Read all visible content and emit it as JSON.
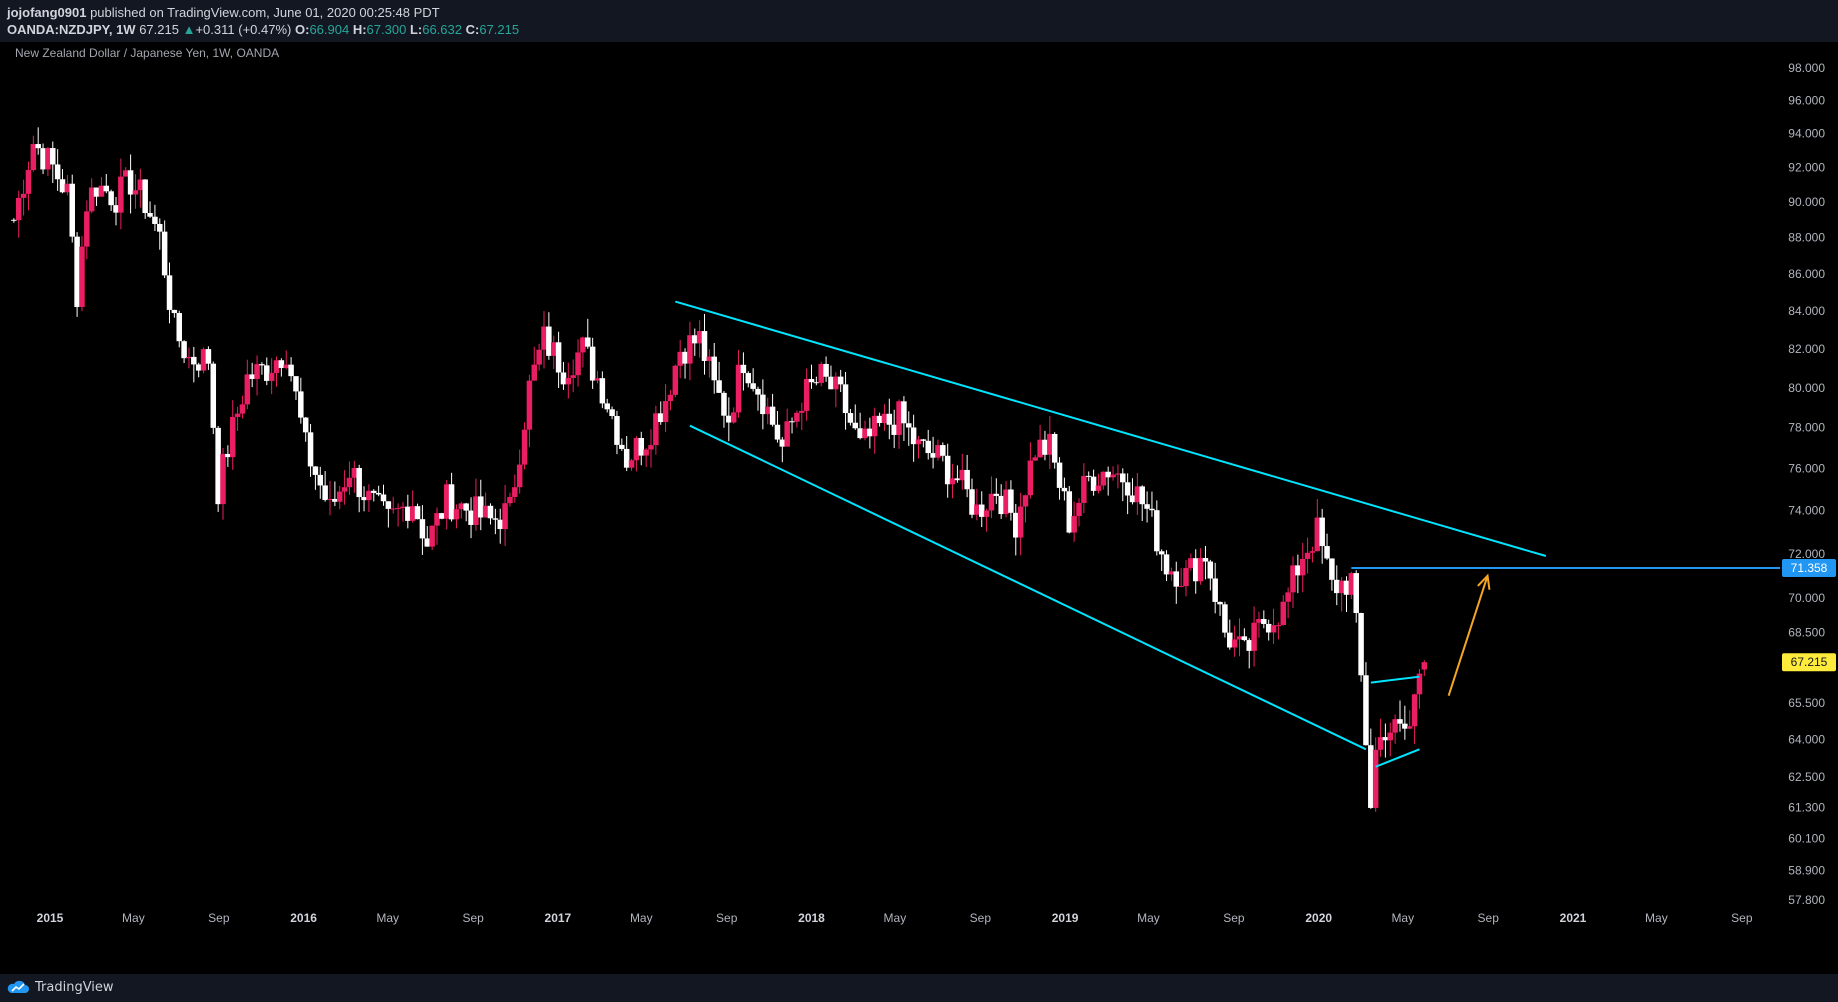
{
  "header": {
    "author": "jojofang0901",
    "published": " published on TradingView.com, June 01, 2020 00:25:48 PDT",
    "symbol": "OANDA:NZDJPY, 1W",
    "last": "67.215",
    "change_arrow": "▲",
    "change": "+0.311 (+0.47%)",
    "o_label": "O:",
    "o_value": "66.904",
    "h_label": "H:",
    "h_value": "67.300",
    "l_label": "L:",
    "l_value": "66.632",
    "c_label": "C:",
    "c_value": "67.215"
  },
  "footer": {
    "brand": "TradingView",
    "logo_icon": "tradingview-cloud-icon"
  },
  "colors": {
    "background": "#000000",
    "panel": "#131722",
    "candle_up": "#e91e63",
    "candle_down": "#ffffff",
    "channel": "#00e5ff",
    "hline": "#2196f3",
    "arrow": "#f5a623",
    "price_tag": "#ffeb3b"
  },
  "chart_data": {
    "type": "candlestick",
    "title": "New Zealand Dollar / Japanese Yen, 1W, OANDA",
    "y_ticks": [
      "98.000",
      "96.000",
      "94.000",
      "92.000",
      "90.000",
      "88.000",
      "86.000",
      "84.000",
      "82.000",
      "80.000",
      "78.000",
      "76.000",
      "74.000",
      "72.000",
      "70.000",
      "68.500",
      "65.500",
      "64.000",
      "62.500",
      "61.300",
      "60.100",
      "58.900",
      "57.800"
    ],
    "y_scale": "log",
    "ylim": [
      56.6,
      100.0
    ],
    "x_ticks": [
      {
        "label": "2015",
        "date": "2015-01-01",
        "bold": true
      },
      {
        "label": "May",
        "date": "2015-05-01",
        "bold": false
      },
      {
        "label": "Sep",
        "date": "2015-09-01",
        "bold": false
      },
      {
        "label": "2016",
        "date": "2016-01-01",
        "bold": true
      },
      {
        "label": "May",
        "date": "2016-05-01",
        "bold": false
      },
      {
        "label": "Sep",
        "date": "2016-09-01",
        "bold": false
      },
      {
        "label": "2017",
        "date": "2017-01-01",
        "bold": true
      },
      {
        "label": "May",
        "date": "2017-05-01",
        "bold": false
      },
      {
        "label": "Sep",
        "date": "2017-09-01",
        "bold": false
      },
      {
        "label": "2018",
        "date": "2018-01-01",
        "bold": true
      },
      {
        "label": "May",
        "date": "2018-05-01",
        "bold": false
      },
      {
        "label": "Sep",
        "date": "2018-09-01",
        "bold": false
      },
      {
        "label": "2019",
        "date": "2019-01-01",
        "bold": true
      },
      {
        "label": "May",
        "date": "2019-05-01",
        "bold": false
      },
      {
        "label": "Sep",
        "date": "2019-09-01",
        "bold": false
      },
      {
        "label": "2020",
        "date": "2020-01-01",
        "bold": true
      },
      {
        "label": "May",
        "date": "2020-05-01",
        "bold": false
      },
      {
        "label": "Sep",
        "date": "2020-09-01",
        "bold": false
      },
      {
        "label": "2021",
        "date": "2021-01-01",
        "bold": true
      },
      {
        "label": "May",
        "date": "2021-05-01",
        "bold": false
      },
      {
        "label": "Sep",
        "date": "2021-09-01",
        "bold": false
      }
    ],
    "price_path": [
      [
        "2014-11-10",
        89.0
      ],
      [
        "2014-12-08",
        93.5
      ],
      [
        "2015-01-05",
        92.0
      ],
      [
        "2015-01-26",
        90.5
      ],
      [
        "2015-02-09",
        85.0
      ],
      [
        "2015-02-23",
        90.0
      ],
      [
        "2015-03-09",
        91.0
      ],
      [
        "2015-04-06",
        90.3
      ],
      [
        "2015-04-27",
        91.2
      ],
      [
        "2015-05-18",
        90.0
      ],
      [
        "2015-06-08",
        88.0
      ],
      [
        "2015-06-29",
        83.0
      ],
      [
        "2015-07-20",
        81.5
      ],
      [
        "2015-08-17",
        81.5
      ],
      [
        "2015-08-31",
        75.0
      ],
      [
        "2015-09-14",
        77.0
      ],
      [
        "2015-10-12",
        80.5
      ],
      [
        "2015-11-09",
        81.0
      ],
      [
        "2015-12-07",
        82.0
      ],
      [
        "2016-01-04",
        77.0
      ],
      [
        "2016-02-08",
        74.0
      ],
      [
        "2016-03-07",
        76.0
      ],
      [
        "2016-04-04",
        74.5
      ],
      [
        "2016-05-02",
        73.5
      ],
      [
        "2016-06-06",
        74.5
      ],
      [
        "2016-06-27",
        72.5
      ],
      [
        "2016-07-25",
        74.5
      ],
      [
        "2016-08-29",
        74.0
      ],
      [
        "2016-09-26",
        73.5
      ],
      [
        "2016-10-24",
        74.0
      ],
      [
        "2016-11-21",
        80.0
      ],
      [
        "2016-12-12",
        82.5
      ],
      [
        "2017-01-09",
        81.0
      ],
      [
        "2017-02-06",
        82.0
      ],
      [
        "2017-03-06",
        80.0
      ],
      [
        "2017-04-10",
        76.5
      ],
      [
        "2017-05-08",
        77.5
      ],
      [
        "2017-06-05",
        79.5
      ],
      [
        "2017-06-26",
        82.0
      ],
      [
        "2017-07-24",
        82.5
      ],
      [
        "2017-08-14",
        80.0
      ],
      [
        "2017-09-04",
        78.5
      ],
      [
        "2017-09-25",
        81.5
      ],
      [
        "2017-10-23",
        79.5
      ],
      [
        "2017-11-20",
        77.0
      ],
      [
        "2017-12-18",
        79.5
      ],
      [
        "2018-01-15",
        80.5
      ],
      [
        "2018-02-12",
        79.5
      ],
      [
        "2018-03-12",
        77.0
      ],
      [
        "2018-04-09",
        78.0
      ],
      [
        "2018-05-07",
        78.5
      ],
      [
        "2018-06-04",
        77.0
      ],
      [
        "2018-07-02",
        76.5
      ],
      [
        "2018-07-30",
        75.5
      ],
      [
        "2018-08-27",
        74.0
      ],
      [
        "2018-09-24",
        75.0
      ],
      [
        "2018-10-22",
        73.5
      ],
      [
        "2018-11-19",
        77.0
      ],
      [
        "2018-12-10",
        77.0
      ],
      [
        "2019-01-07",
        73.5
      ],
      [
        "2019-02-04",
        75.5
      ],
      [
        "2019-03-04",
        76.0
      ],
      [
        "2019-04-01",
        75.5
      ],
      [
        "2019-04-29",
        74.0
      ],
      [
        "2019-05-27",
        71.5
      ],
      [
        "2019-06-24",
        71.0
      ],
      [
        "2019-07-22",
        72.0
      ],
      [
        "2019-08-19",
        68.5
      ],
      [
        "2019-09-16",
        67.5
      ],
      [
        "2019-10-14",
        69.0
      ],
      [
        "2019-11-11",
        69.5
      ],
      [
        "2019-12-09",
        72.0
      ],
      [
        "2019-12-30",
        73.0
      ],
      [
        "2020-01-20",
        70.5
      ],
      [
        "2020-02-17",
        70.8
      ],
      [
        "2020-03-02",
        66.5
      ],
      [
        "2020-03-16",
        61.5
      ],
      [
        "2020-03-23",
        63.5
      ],
      [
        "2020-04-06",
        64.5
      ],
      [
        "2020-04-27",
        64.3
      ],
      [
        "2020-05-11",
        64.5
      ],
      [
        "2020-05-25",
        66.9
      ]
    ],
    "last_price": 67.215,
    "last_candle": {
      "date": "2020-06-01",
      "open": 66.904,
      "high": 67.3,
      "low": 66.632,
      "close": 67.215
    },
    "price_tags": [
      {
        "label": "71.358",
        "value": 71.358,
        "color": "#2196f3"
      },
      {
        "label": "67.215",
        "value": 67.215,
        "color": "#ffeb3b"
      }
    ],
    "drawings": [
      {
        "type": "trendline",
        "name": "channel-upper-line",
        "color": "#00e5ff",
        "from": [
          "2017-06-19",
          84.5
        ],
        "to": [
          "2020-11-23",
          71.9
        ]
      },
      {
        "type": "trendline",
        "name": "channel-lower-line",
        "color": "#00e5ff",
        "from": [
          "2017-07-10",
          78.1
        ],
        "to": [
          "2020-03-09",
          63.6
        ]
      },
      {
        "type": "hline",
        "name": "resistance-line",
        "color": "#2196f3",
        "price": 71.358,
        "from": "2020-02-17"
      },
      {
        "type": "trendline",
        "name": "flag-upper-line",
        "color": "#00e5ff",
        "from": [
          "2020-03-16",
          66.35
        ],
        "to": [
          "2020-05-25",
          66.6
        ]
      },
      {
        "type": "trendline",
        "name": "flag-lower-line",
        "color": "#00e5ff",
        "from": [
          "2020-03-23",
          62.9
        ],
        "to": [
          "2020-05-25",
          63.6
        ]
      },
      {
        "type": "arrow",
        "name": "projection-arrow",
        "color": "#f5a623",
        "from": [
          "2020-07-06",
          65.8
        ],
        "to": [
          "2020-08-31",
          71.0
        ]
      }
    ]
  }
}
